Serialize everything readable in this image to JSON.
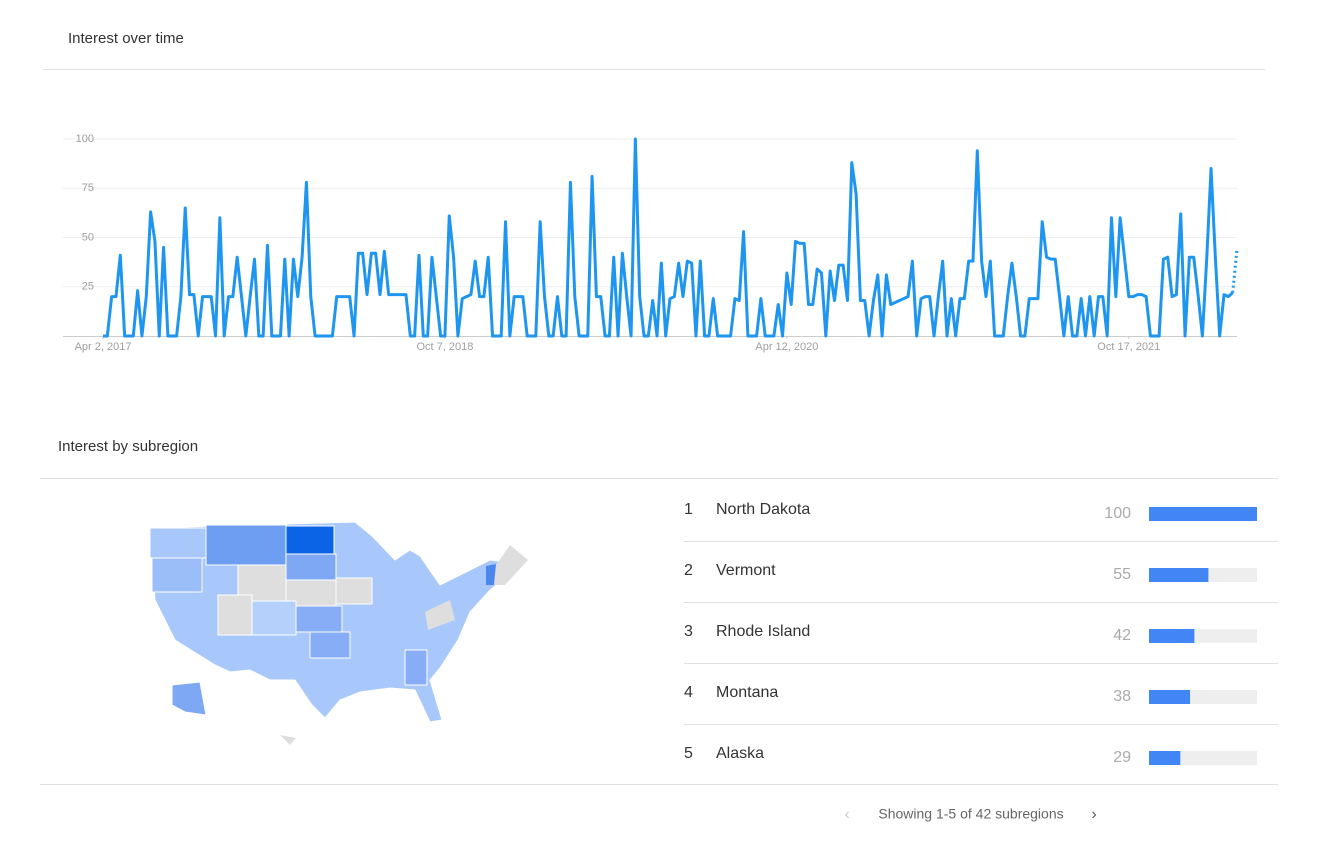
{
  "header": {
    "title": "Interest over time"
  },
  "chart_data": {
    "type": "line",
    "color": "#1e96f0",
    "ylim": [
      0,
      100
    ],
    "yticks": [
      25,
      50,
      75,
      100
    ],
    "grid": true,
    "xlim": [
      0,
      262
    ],
    "xticks": [
      {
        "value": 0,
        "label": "Apr 2, 2017"
      },
      {
        "value": 79,
        "label": "Oct 7, 2018"
      },
      {
        "value": 158,
        "label": "Apr 12, 2020"
      },
      {
        "value": 237,
        "label": "Oct 17, 2021"
      }
    ],
    "values": [
      0,
      0,
      20,
      20,
      41,
      0,
      0,
      0,
      23,
      0,
      20,
      63,
      48,
      0,
      45,
      0,
      0,
      0,
      20,
      65,
      21,
      21,
      0,
      20,
      20,
      20,
      0,
      60,
      0,
      20,
      20,
      40,
      20,
      0,
      20,
      39,
      0,
      0,
      46,
      0,
      0,
      0,
      39,
      0,
      39,
      20,
      40,
      78,
      20,
      0,
      0,
      0,
      0,
      0,
      20,
      20,
      20,
      20,
      0,
      42,
      42,
      21,
      42,
      42,
      21,
      43,
      21,
      21,
      21,
      21,
      21,
      0,
      0,
      41,
      0,
      0,
      40,
      20,
      0,
      0,
      61,
      40,
      0,
      19,
      20,
      21,
      38,
      20,
      20,
      40,
      0,
      0,
      0,
      58,
      0,
      20,
      20,
      20,
      0,
      0,
      0,
      58,
      20,
      0,
      0,
      20,
      0,
      0,
      78,
      20,
      0,
      0,
      0,
      81,
      20,
      20,
      0,
      0,
      40,
      0,
      42,
      20,
      0,
      100,
      20,
      0,
      0,
      18,
      0,
      37,
      0,
      19,
      20,
      37,
      20,
      38,
      37,
      0,
      38,
      0,
      0,
      19,
      0,
      0,
      0,
      0,
      19,
      18,
      53,
      0,
      0,
      0,
      19,
      0,
      0,
      0,
      16,
      0,
      32,
      16,
      48,
      47,
      47,
      16,
      16,
      34,
      32,
      0,
      33,
      18,
      36,
      36,
      18,
      88,
      72,
      18,
      18,
      0,
      18,
      31,
      0,
      31,
      16,
      17,
      18,
      19,
      20,
      38,
      0,
      19,
      20,
      20,
      0,
      20,
      38,
      0,
      19,
      0,
      19,
      19,
      38,
      38,
      94,
      38,
      20,
      38,
      0,
      0,
      0,
      20,
      37,
      20,
      0,
      0,
      19,
      19,
      19,
      58,
      40,
      39,
      39,
      20,
      0,
      20,
      0,
      0,
      19,
      0,
      20,
      0,
      20,
      20,
      0,
      60,
      20,
      60,
      40,
      20,
      20,
      21,
      21,
      20,
      0,
      0,
      0,
      39,
      40,
      20,
      21,
      62,
      0,
      40,
      40,
      21,
      0,
      39,
      85,
      40,
      0,
      21,
      20,
      22,
      44
    ]
  },
  "subregion": {
    "title": "Interest by subregion",
    "rows": [
      {
        "rank": 1,
        "name": "North Dakota",
        "value": 100
      },
      {
        "rank": 2,
        "name": "Vermont",
        "value": 55
      },
      {
        "rank": 3,
        "name": "Rhode Island",
        "value": 42
      },
      {
        "rank": 4,
        "name": "Montana",
        "value": 38
      },
      {
        "rank": 5,
        "name": "Alaska",
        "value": 29
      }
    ],
    "footer": "Showing 1-5 of 42 subregions"
  }
}
